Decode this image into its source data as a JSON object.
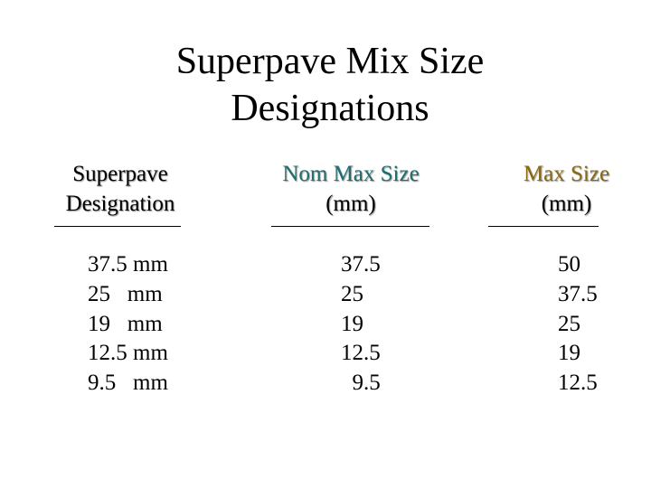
{
  "header": {
    "title": "Superpave Mix Size Designations"
  },
  "table": {
    "columns": [
      {
        "heading": [
          "Superpave",
          "Designation"
        ]
      },
      {
        "heading": [
          "Nom Max Size",
          "(mm)"
        ]
      },
      {
        "heading": [
          "Max Size",
          "(mm)"
        ]
      }
    ],
    "rows": [
      [
        "37.5 mm",
        "37.5",
        "50"
      ],
      [
        "25   mm",
        "25",
        "37.5"
      ],
      [
        "19   mm",
        "19",
        "25"
      ],
      [
        "12.5 mm",
        "12.5",
        "19"
      ],
      [
        "9.5   mm",
        "  9.5",
        "12.5"
      ]
    ]
  }
}
